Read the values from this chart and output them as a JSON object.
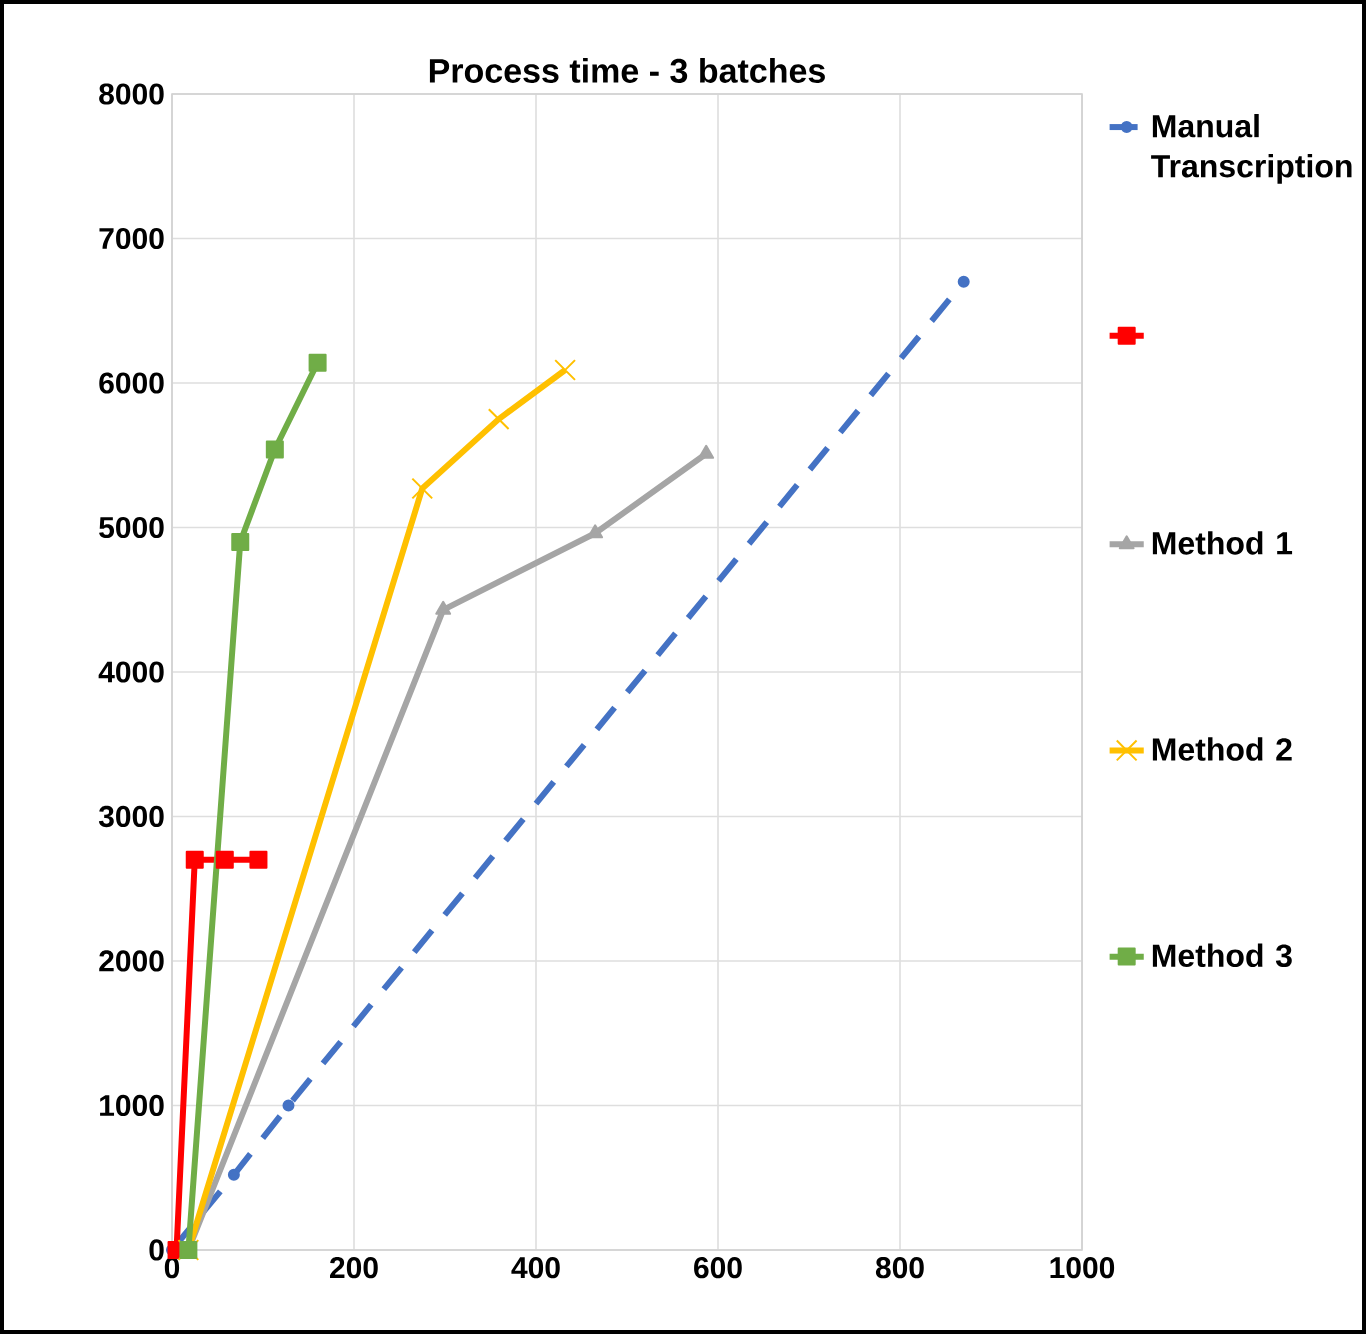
{
  "chart_data": {
    "type": "line",
    "title": "Process time - 3 batches",
    "xlim": [
      0,
      1000
    ],
    "xticks": [
      0,
      200,
      400,
      600,
      800,
      1000
    ],
    "ylim": [
      0,
      8000
    ],
    "yticks": [
      0,
      1000,
      2000,
      3000,
      4000,
      5000,
      6000,
      7000,
      8000
    ],
    "grid": true,
    "legend": "right",
    "series": [
      {
        "name": "Manual Transcription",
        "color": "#4472c4",
        "marker": "circle",
        "line_style": "dashed",
        "x": [
          0,
          68,
          128,
          870
        ],
        "values": [
          0,
          520,
          1000,
          6700
        ]
      },
      {
        "color": "#ff0000",
        "marker": "square",
        "line_style": "solid",
        "x": [
          5,
          25,
          58,
          95
        ],
        "values": [
          0,
          2700,
          2700,
          2700
        ]
      },
      {
        "name": "Method 1",
        "color": "#a5a5a5",
        "marker": "triangle",
        "line_style": "solid",
        "x": [
          18,
          298,
          465,
          587
        ],
        "values": [
          0,
          4430,
          4960,
          5510
        ]
      },
      {
        "name": "Method 2",
        "color": "#ffc000",
        "marker": "cross",
        "line_style": "solid",
        "x": [
          18,
          275,
          359,
          432
        ],
        "values": [
          0,
          5270,
          5750,
          6090
        ]
      },
      {
        "name": "Method 3",
        "color": "#70ad47",
        "marker": "square",
        "line_style": "solid",
        "x": [
          18,
          75,
          113,
          160
        ],
        "values": [
          0,
          4900,
          5540,
          6140
        ]
      }
    ]
  }
}
